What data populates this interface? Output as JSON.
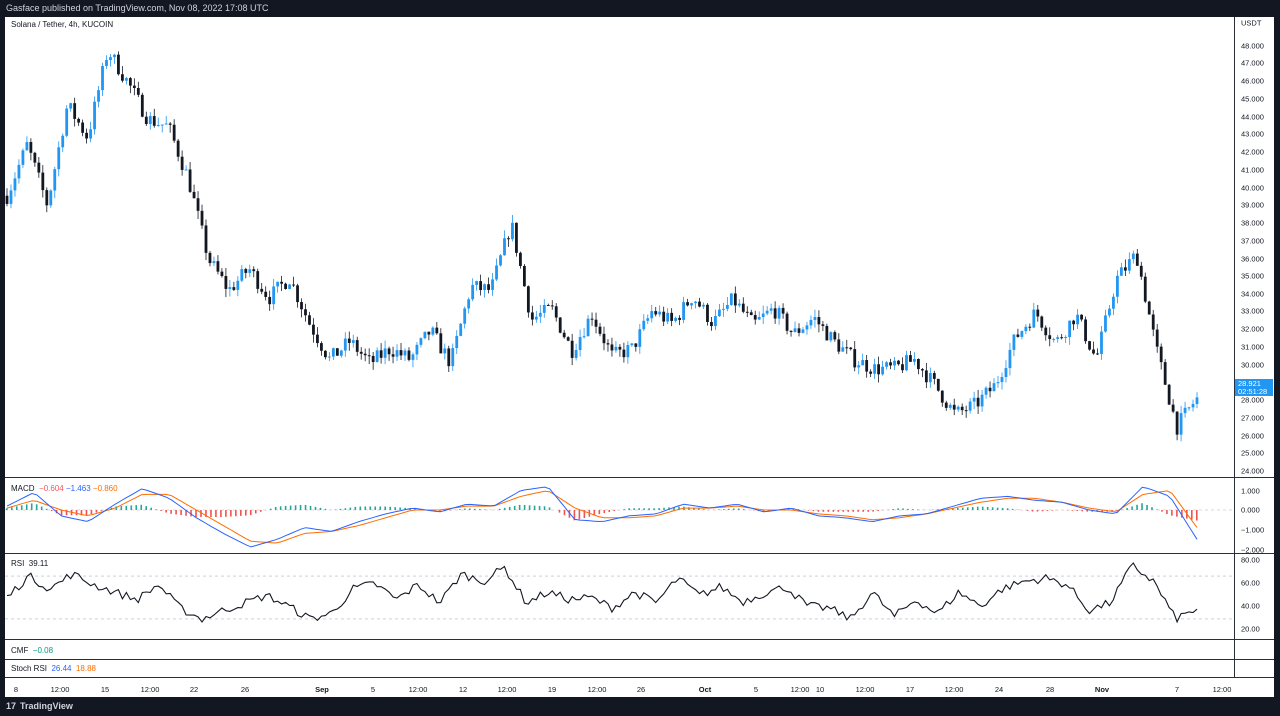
{
  "header": {
    "publisher_line": "Gasface published on TradingView.com, Nov 08, 2022 17:08 UTC"
  },
  "footer": {
    "brand": "TradingView",
    "logo_glyph": "17"
  },
  "main_pane": {
    "title": "Solana / Tether, 4h, KUCOIN",
    "currency": "USDT",
    "price_labels": [
      "48.000",
      "47.000",
      "46.000",
      "45.000",
      "44.000",
      "43.000",
      "42.000",
      "41.000",
      "40.000",
      "39.000",
      "38.000",
      "37.000",
      "36.000",
      "35.000",
      "34.000",
      "33.000",
      "32.000",
      "31.000",
      "30.000",
      "28.000",
      "27.000",
      "26.000",
      "25.000",
      "24.000"
    ],
    "last_price": "28.921",
    "countdown": "02:51:28",
    "colors": {
      "up": "#2196f3",
      "down": "#131722"
    }
  },
  "macd_pane": {
    "name": "MACD",
    "hist_value": "−0.604",
    "macd_value": "−1.463",
    "signal_value": "−0.860",
    "axis_labels": [
      "1.000",
      "0.000",
      "−1.000",
      "−2.000"
    ],
    "colors": {
      "macd": "#2962ff",
      "signal": "#ff6d00",
      "hist_up": "#26a69a",
      "hist_down": "#ef5350"
    }
  },
  "rsi_pane": {
    "name": "RSI",
    "value": "39.11",
    "axis_labels": [
      "80.00",
      "60.00",
      "40.00",
      "20.00"
    ]
  },
  "cmf_pane": {
    "name": "CMF",
    "value": "−0.08"
  },
  "stoch_pane": {
    "name": "Stoch RSI",
    "k_value": "26.44",
    "d_value": "18.88"
  },
  "time_axis": {
    "labels": [
      "8",
      "12:00",
      "15",
      "12:00",
      "22",
      "26",
      "Sep",
      "5",
      "12:00",
      "12",
      "12:00",
      "19",
      "12:00",
      "26",
      "Oct",
      "5",
      "12:00",
      "10",
      "12:00",
      "17",
      "12:00",
      "24",
      "28",
      "Nov",
      "7",
      "12:00"
    ]
  },
  "chart_data": {
    "type": "candlestick",
    "title": "Solana / Tether, 4h, KUCOIN",
    "ylabel": "USDT",
    "ylim": [
      24,
      48.5
    ],
    "x": [
      "8",
      "12:00",
      "15",
      "12:00",
      "22",
      "26",
      "Sep",
      "5",
      "12:00",
      "12",
      "12:00",
      "19",
      "12:00",
      "26",
      "Oct",
      "5",
      "12:00",
      "10",
      "12:00",
      "17",
      "12:00",
      "24",
      "28",
      "Nov",
      "7",
      "12:00"
    ],
    "close_path": [
      40.0,
      42.8,
      39.5,
      45.0,
      43.2,
      48.0,
      46.2,
      44.2,
      43.8,
      40.9,
      36.5,
      34.8,
      36.0,
      34.4,
      35.5,
      33.0,
      31.0,
      32.0,
      30.8,
      31.6,
      31.0,
      32.6,
      30.8,
      35.0,
      34.8,
      38.5,
      33.2,
      33.8,
      31.5,
      33.5,
      31.2,
      31.6,
      33.7,
      33.0,
      34.5,
      33.0,
      34.3,
      32.9,
      33.8,
      32.4,
      33.3,
      32.0,
      31.0,
      30.5,
      30.5,
      31.0,
      29.6,
      28.0,
      28.5,
      29.6,
      32.2,
      33.6,
      31.9,
      33.5,
      31.0,
      35.4,
      36.8,
      31.5,
      27.3,
      28.9
    ],
    "last": 28.921
  },
  "indicator_data": {
    "macd_line": [
      0.2,
      0.9,
      -0.3,
      -0.6,
      0.3,
      1.1,
      0.6,
      -0.4,
      -1.2,
      -1.9,
      -1.5,
      -0.9,
      -1.1,
      -0.6,
      -0.2,
      0.1,
      -0.1,
      0.3,
      0.2,
      1.0,
      1.2,
      -0.5,
      -0.6,
      -0.3,
      -0.2,
      0.3,
      0.1,
      0.3,
      -0.1,
      0.1,
      -0.3,
      -0.4,
      -0.6,
      -0.3,
      -0.2,
      0.2,
      0.6,
      0.7,
      0.5,
      0.4,
      0.0,
      -0.2,
      1.2,
      0.7,
      -1.5
    ],
    "signal_line": [
      0.1,
      0.5,
      0.0,
      -0.3,
      0.1,
      0.8,
      0.8,
      0.0,
      -0.8,
      -1.6,
      -1.7,
      -1.2,
      -1.1,
      -0.8,
      -0.4,
      0.0,
      0.0,
      0.2,
      0.2,
      0.7,
      1.0,
      0.1,
      -0.4,
      -0.4,
      -0.3,
      0.1,
      0.1,
      0.2,
      0.0,
      0.0,
      -0.2,
      -0.3,
      -0.5,
      -0.4,
      -0.2,
      0.1,
      0.4,
      0.6,
      0.6,
      0.4,
      0.1,
      -0.1,
      0.8,
      1.0,
      -0.9
    ],
    "rsi": [
      50,
      70,
      58,
      72,
      62,
      55,
      48,
      62,
      40,
      30,
      38,
      45,
      52,
      42,
      30,
      35,
      58,
      63,
      48,
      62,
      45,
      72,
      65,
      78,
      45,
      55,
      48,
      50,
      40,
      55,
      45,
      68,
      52,
      60,
      46,
      54,
      60,
      42,
      40,
      30,
      55,
      32,
      48,
      35,
      55,
      42,
      58,
      65,
      68,
      62,
      38,
      45,
      80,
      65,
      30,
      39
    ]
  }
}
